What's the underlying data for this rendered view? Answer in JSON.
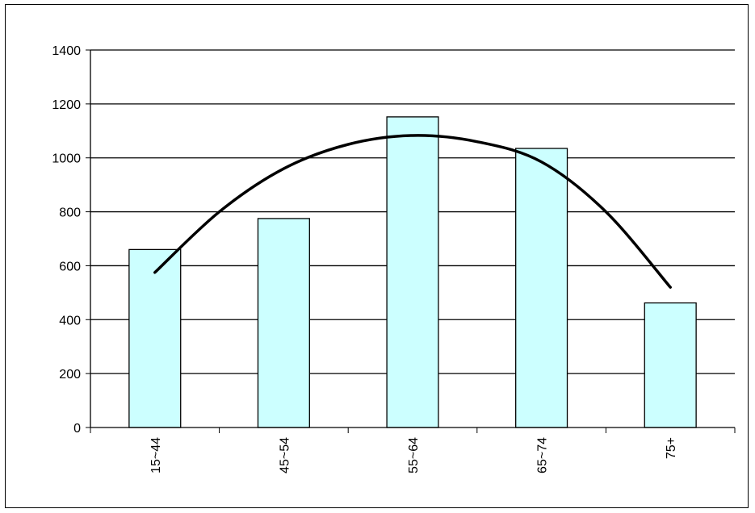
{
  "chart_data": {
    "type": "bar",
    "title": "",
    "xlabel": "",
    "ylabel": "",
    "categories": [
      "15~44",
      "45~54",
      "55~64",
      "65~74",
      "75+"
    ],
    "values": [
      660,
      775,
      1152,
      1035,
      462
    ],
    "ylim": [
      0,
      1400
    ],
    "yticks": [
      0,
      200,
      400,
      600,
      800,
      1000,
      1200,
      1400
    ],
    "grid": true,
    "legend": "none",
    "bar_color": "#ccffff",
    "bar_edge_color": "#000000",
    "trendline": {
      "type": "polynomial",
      "points": [
        {
          "x": 0,
          "y": 575
        },
        {
          "x": 0.5,
          "y": 800
        },
        {
          "x": 1,
          "y": 960
        },
        {
          "x": 1.5,
          "y": 1050
        },
        {
          "x": 2,
          "y": 1083
        },
        {
          "x": 2.5,
          "y": 1060
        },
        {
          "x": 3,
          "y": 985
        },
        {
          "x": 3.5,
          "y": 800
        },
        {
          "x": 4,
          "y": 520
        }
      ]
    }
  }
}
